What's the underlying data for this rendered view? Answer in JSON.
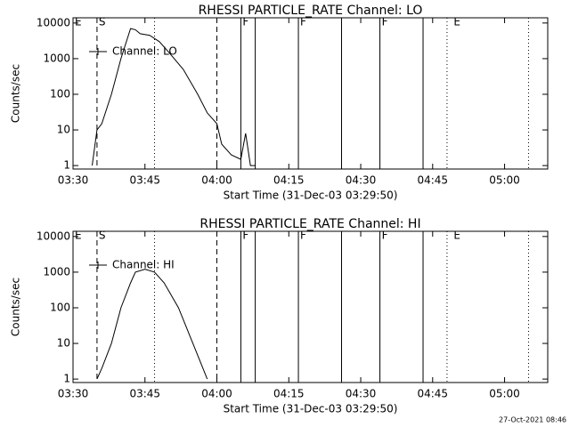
{
  "chart_data": [
    {
      "type": "line",
      "title": "RHESSI PARTICLE_RATE Channel: LO",
      "x_label": "Start Time (31-Dec-03 03:29:50)",
      "y_label": "Counts/sec",
      "log_y": true,
      "xlim": [
        "03:30",
        "05:09"
      ],
      "ylim": [
        0.8,
        14000
      ],
      "xticks": [
        "03:30",
        "03:45",
        "04:00",
        "04:15",
        "04:30",
        "04:45",
        "05:00"
      ],
      "yticks": [
        1,
        10,
        100,
        1000,
        10000
      ],
      "series": [
        {
          "name": "Channel: LO",
          "color": "#000000",
          "x": [
            "03:34",
            "03:35",
            "03:36",
            "03:38",
            "03:40",
            "03:42",
            "03:43",
            "03:44",
            "03:46",
            "03:48",
            "03:50",
            "03:53",
            "03:56",
            "03:58",
            "04:00",
            "04:01",
            "04:03",
            "04:05",
            "04:06",
            "04:07",
            "04:08"
          ],
          "values": [
            1,
            10,
            15,
            100,
            1000,
            7000,
            6500,
            5000,
            4500,
            3000,
            1500,
            500,
            100,
            30,
            15,
            4,
            2,
            1.5,
            8,
            1,
            1
          ]
        }
      ],
      "events": [
        {
          "x": "03:35",
          "style": "dashed"
        },
        {
          "x": "03:47",
          "style": "dotted"
        },
        {
          "x": "04:00",
          "style": "dashed"
        },
        {
          "x": "04:05",
          "style": "solid"
        },
        {
          "x": "04:08",
          "style": "solid"
        },
        {
          "x": "04:17",
          "style": "solid"
        },
        {
          "x": "04:26",
          "style": "solid"
        },
        {
          "x": "04:34",
          "style": "solid"
        },
        {
          "x": "04:43",
          "style": "solid"
        },
        {
          "x": "04:48",
          "style": "dotted"
        },
        {
          "x": "05:05",
          "style": "dotted"
        }
      ],
      "flags": [
        {
          "x": "03:30",
          "label": "E"
        },
        {
          "x": "03:35",
          "label": "S"
        },
        {
          "x": "04:05",
          "label": "F"
        },
        {
          "x": "04:17",
          "label": "F"
        },
        {
          "x": "04:34",
          "label": "F"
        },
        {
          "x": "04:49",
          "label": "E"
        }
      ]
    },
    {
      "type": "line",
      "title": "RHESSI PARTICLE_RATE Channel: HI",
      "x_label": "Start Time (31-Dec-03 03:29:50)",
      "y_label": "Counts/sec",
      "log_y": true,
      "xlim": [
        "03:30",
        "05:09"
      ],
      "ylim": [
        0.8,
        14000
      ],
      "xticks": [
        "03:30",
        "03:45",
        "04:00",
        "04:15",
        "04:30",
        "04:45",
        "05:00"
      ],
      "yticks": [
        1,
        10,
        100,
        1000,
        10000
      ],
      "series": [
        {
          "name": "Channel: HI",
          "color": "#000000",
          "x": [
            "03:35",
            "03:36",
            "03:38",
            "03:40",
            "03:42",
            "03:43",
            "03:45",
            "03:47",
            "03:49",
            "03:52",
            "03:55",
            "03:58"
          ],
          "values": [
            1,
            2,
            10,
            100,
            500,
            1000,
            1200,
            1000,
            500,
            100,
            10,
            1
          ]
        }
      ],
      "events": [
        {
          "x": "03:35",
          "style": "dashed"
        },
        {
          "x": "03:47",
          "style": "dotted"
        },
        {
          "x": "04:00",
          "style": "dashed"
        },
        {
          "x": "04:05",
          "style": "solid"
        },
        {
          "x": "04:08",
          "style": "solid"
        },
        {
          "x": "04:17",
          "style": "solid"
        },
        {
          "x": "04:26",
          "style": "solid"
        },
        {
          "x": "04:34",
          "style": "solid"
        },
        {
          "x": "04:43",
          "style": "solid"
        },
        {
          "x": "04:48",
          "style": "dotted"
        },
        {
          "x": "05:05",
          "style": "dotted"
        }
      ],
      "flags": [
        {
          "x": "03:30",
          "label": "E"
        },
        {
          "x": "03:35",
          "label": "S"
        },
        {
          "x": "04:05",
          "label": "F"
        },
        {
          "x": "04:17",
          "label": "F"
        },
        {
          "x": "04:34",
          "label": "F"
        },
        {
          "x": "04:49",
          "label": "E"
        }
      ]
    }
  ],
  "footer": "27-Oct-2021 08:46"
}
